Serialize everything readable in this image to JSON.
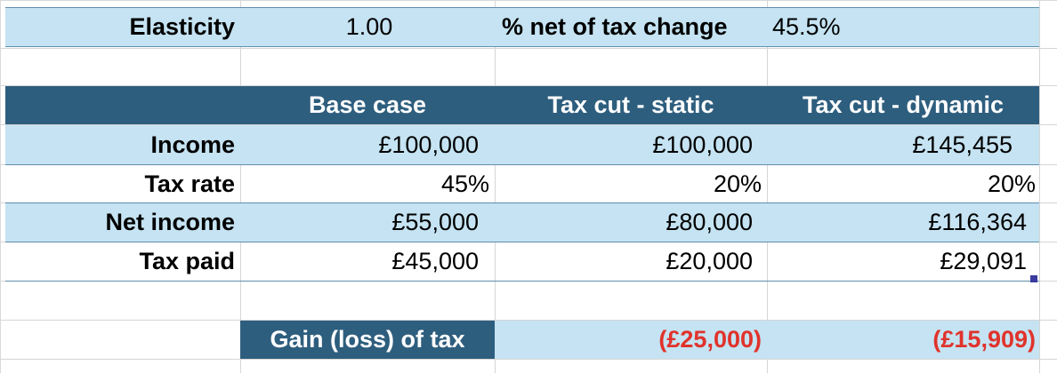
{
  "params": {
    "elasticity_label": "Elasticity",
    "elasticity_value": "1.00",
    "net_change_label": "% net of tax change",
    "net_change_value": "45.5%"
  },
  "table": {
    "columns": [
      "Base case",
      "Tax cut - static",
      "Tax cut - dynamic"
    ],
    "rows": [
      {
        "label": "Income",
        "values": [
          "£100,000",
          "£100,000",
          "£145,455"
        ]
      },
      {
        "label": "Tax rate",
        "values": [
          "45%",
          "20%",
          "20%"
        ]
      },
      {
        "label": "Net income",
        "values": [
          "£55,000",
          "£80,000",
          "£116,364"
        ]
      },
      {
        "label": "Tax paid",
        "values": [
          "£45,000",
          "£20,000",
          "£29,091"
        ]
      }
    ]
  },
  "summary": {
    "label": "Gain (loss) of tax",
    "static": "(£25,000)",
    "dynamic": "(£15,909)"
  },
  "colors": {
    "header_dark": "#2e5e7e",
    "band_light": "#c5e3f2",
    "negative_red": "#e0332c"
  }
}
